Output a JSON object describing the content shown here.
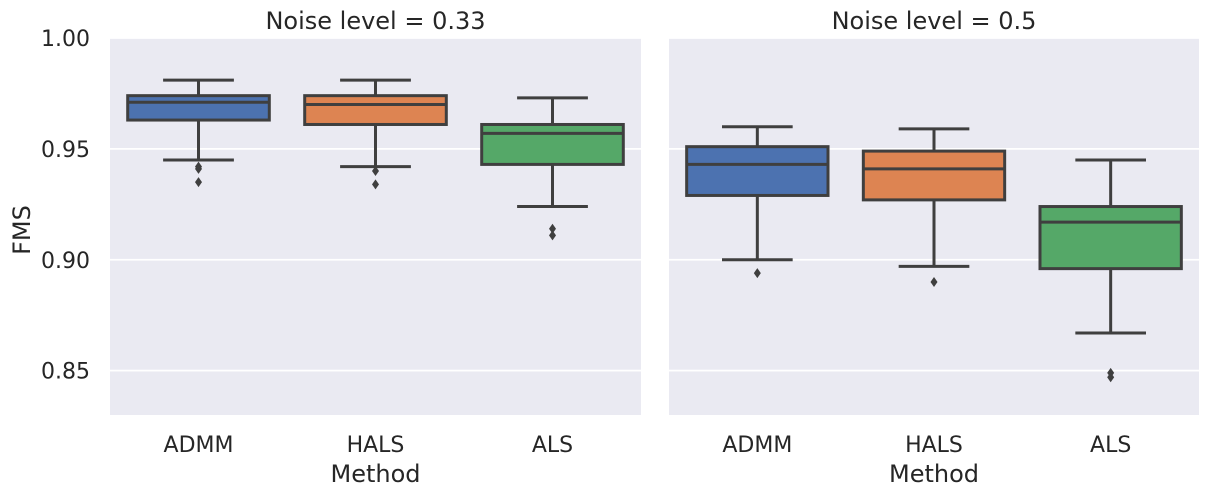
{
  "chart_data": {
    "type": "boxplot",
    "ylabel": "FMS",
    "xlabel": "Method",
    "ylim": [
      0.83,
      1.0
    ],
    "yticks": [
      0.85,
      0.9,
      0.95,
      1.0
    ],
    "ytick_labels": [
      "0.85",
      "0.90",
      "0.95",
      "1.00"
    ],
    "categories": [
      "ADMM",
      "HALS",
      "ALS"
    ],
    "colors": {
      "ADMM": "#4c72b0",
      "HALS": "#dd8452",
      "ALS": "#55a868"
    },
    "panels": [
      {
        "title": "Noise level = 0.33",
        "boxes": [
          {
            "method": "ADMM",
            "whisker_low": 0.945,
            "q1": 0.963,
            "median": 0.971,
            "q3": 0.974,
            "whisker_high": 0.981,
            "outliers": [
              0.942,
              0.941,
              0.935
            ]
          },
          {
            "method": "HALS",
            "whisker_low": 0.942,
            "q1": 0.961,
            "median": 0.97,
            "q3": 0.974,
            "whisker_high": 0.981,
            "outliers": [
              0.94,
              0.934
            ]
          },
          {
            "method": "ALS",
            "whisker_low": 0.924,
            "q1": 0.943,
            "median": 0.957,
            "q3": 0.961,
            "whisker_high": 0.973,
            "outliers": [
              0.914,
              0.911
            ]
          }
        ]
      },
      {
        "title": "Noise level = 0.5",
        "boxes": [
          {
            "method": "ADMM",
            "whisker_low": 0.9,
            "q1": 0.929,
            "median": 0.943,
            "q3": 0.951,
            "whisker_high": 0.96,
            "outliers": [
              0.894
            ]
          },
          {
            "method": "HALS",
            "whisker_low": 0.897,
            "q1": 0.927,
            "median": 0.941,
            "q3": 0.949,
            "whisker_high": 0.959,
            "outliers": [
              0.89
            ]
          },
          {
            "method": "ALS",
            "whisker_low": 0.867,
            "q1": 0.896,
            "median": 0.917,
            "q3": 0.924,
            "whisker_high": 0.945,
            "outliers": [
              0.849,
              0.847
            ]
          }
        ]
      }
    ]
  }
}
